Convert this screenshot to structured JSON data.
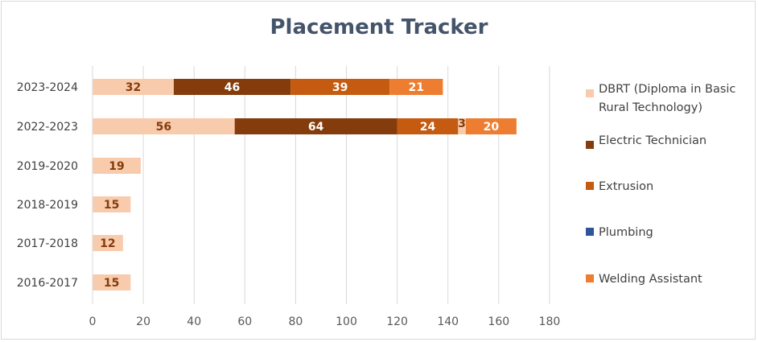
{
  "colors": {
    "dbrt": "#f8cbad",
    "electric": "#843c0c",
    "extrusion": "#c55a11",
    "plumbing": "#2f5597",
    "welding": "#ed7d31",
    "label_dark": "#843c0c",
    "label_light": "#ffffff"
  },
  "chart_data": {
    "type": "bar",
    "orientation": "horizontal",
    "stacked": true,
    "title": "Placement Tracker",
    "categories": [
      "2023-2024",
      "2022-2023",
      "2019-2020",
      "2018-2019",
      "2017-2018",
      "2016-2017"
    ],
    "series": [
      {
        "name": "DBRT (Diploma in Basic Rural Technology)",
        "color": "#f8cbad",
        "values": [
          32,
          56,
          19,
          15,
          12,
          15
        ]
      },
      {
        "name": "Electric Technician",
        "color": "#843c0c",
        "values": [
          46,
          64,
          0,
          0,
          0,
          0
        ]
      },
      {
        "name": "Extrusion",
        "color": "#c55a11",
        "values": [
          39,
          24,
          0,
          0,
          0,
          0
        ]
      },
      {
        "name": "Plumbing",
        "color": "#2f5597",
        "values": [
          0,
          0,
          0,
          0,
          0,
          0
        ]
      },
      {
        "name": "Welding Assistant",
        "color": "#ed7d31",
        "values": [
          21,
          20,
          0,
          0,
          0,
          0
        ]
      }
    ],
    "extra_segment": {
      "category": "2022-2023",
      "value": 3,
      "color": "#f8cbad",
      "label": "3"
    },
    "xlim": [
      0,
      180
    ],
    "xticks": [
      0,
      20,
      40,
      60,
      80,
      100,
      120,
      140,
      160,
      180
    ],
    "grid": true,
    "legend_position": "right"
  }
}
